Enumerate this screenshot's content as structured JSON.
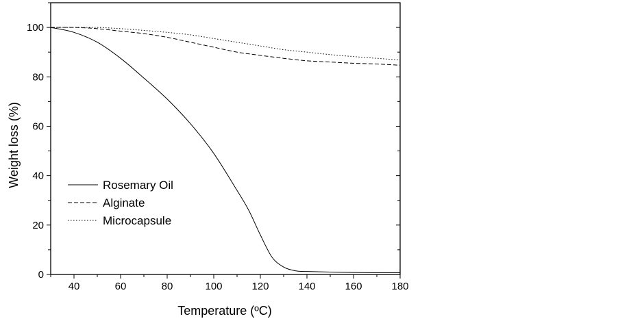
{
  "chart_data": {
    "type": "line",
    "title": "",
    "xlabel": "Temperature (ºC)",
    "ylabel": "Weight loss (%)",
    "xlim": [
      30,
      180
    ],
    "ylim": [
      0,
      110
    ],
    "xticks": [
      40,
      60,
      80,
      100,
      120,
      140,
      160,
      180
    ],
    "yticks": [
      0,
      20,
      40,
      60,
      80,
      100
    ],
    "xtick_labels": [
      "40",
      "60",
      "80",
      "100",
      "120",
      "140",
      "160",
      "180"
    ],
    "ytick_labels": [
      "0",
      "20",
      "40",
      "60",
      "80",
      "100"
    ],
    "grid": false,
    "legend_position": "center-left",
    "series": [
      {
        "name": "Rosemary Oil",
        "style": "solid",
        "x": [
          30,
          40,
          50,
          60,
          70,
          80,
          90,
          100,
          110,
          115,
          120,
          125,
          130,
          135,
          140,
          160,
          180
        ],
        "y": [
          100,
          98,
          94,
          87.5,
          79.5,
          71,
          61,
          49,
          34,
          26,
          16,
          7,
          3,
          1.5,
          1.2,
          0.8,
          0.7
        ]
      },
      {
        "name": "Alginate",
        "style": "dashed",
        "x": [
          30,
          40,
          50,
          60,
          70,
          80,
          90,
          100,
          110,
          120,
          130,
          140,
          150,
          160,
          170,
          180
        ],
        "y": [
          100,
          100,
          99.5,
          98.5,
          97.5,
          96,
          94,
          92,
          90,
          88.7,
          87.5,
          86.5,
          86,
          85.5,
          85.2,
          84.7
        ]
      },
      {
        "name": "Microcapsule",
        "style": "dotted",
        "x": [
          30,
          40,
          50,
          60,
          70,
          80,
          90,
          100,
          110,
          120,
          130,
          140,
          150,
          160,
          170,
          180
        ],
        "y": [
          100,
          100,
          100,
          99.5,
          98.8,
          98,
          97,
          95.5,
          94,
          92.5,
          91,
          90,
          89,
          88.2,
          87.5,
          86.8
        ]
      }
    ]
  }
}
